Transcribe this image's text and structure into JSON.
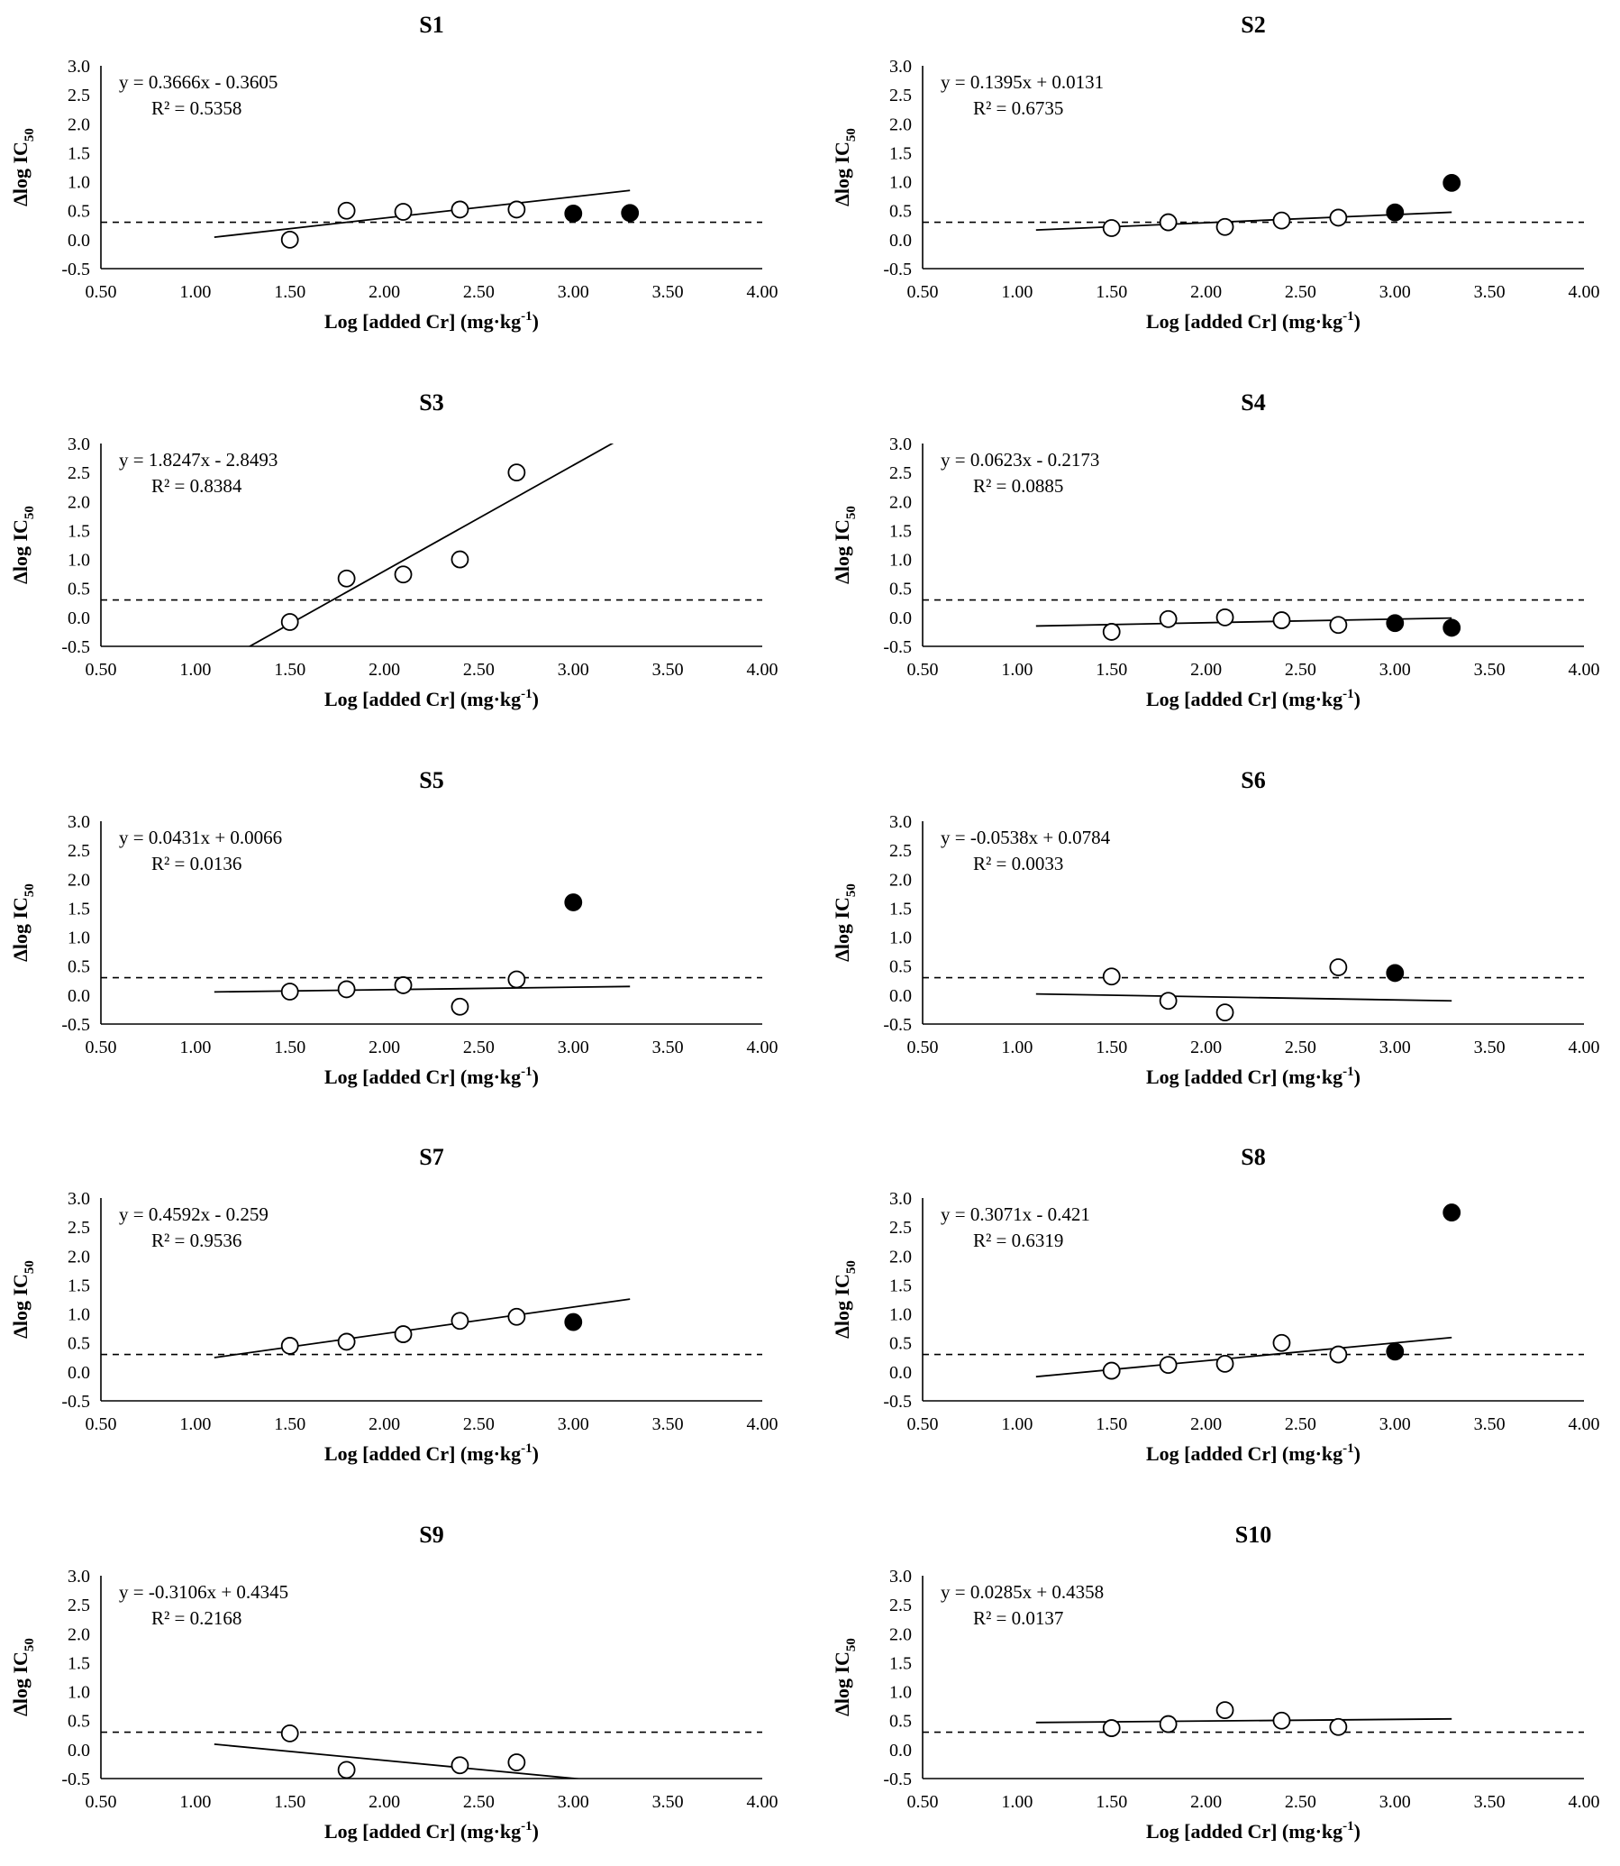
{
  "figure": {
    "xlabel": "Log [added Cr]  (mg·kg",
    "xlabel_sup": "-1",
    "xlabel_end": ")",
    "ylabel_main": "Δlog IC",
    "ylabel_sub": "50",
    "threshold_line": 0.3,
    "colors": {
      "line": "#000000",
      "open_marker_fill": "#ffffff",
      "filled_marker": "#000000"
    }
  },
  "chart_data": [
    {
      "type": "scatter",
      "title": "S1",
      "xlim": [
        0.5,
        4.0
      ],
      "ylim": [
        -0.5,
        3.0
      ],
      "xticks": [
        "0.50",
        "1.00",
        "1.50",
        "2.00",
        "2.50",
        "3.00",
        "3.50",
        "4.00"
      ],
      "yticks": [
        "-0.5",
        "0.0",
        "0.5",
        "1.0",
        "1.5",
        "2.0",
        "2.5",
        "3.0"
      ],
      "series": [
        {
          "name": "open",
          "marker": "open",
          "x": [
            1.5,
            1.8,
            2.1,
            2.4,
            2.7
          ],
          "y": [
            0.0,
            0.5,
            0.48,
            0.52,
            0.52
          ]
        },
        {
          "name": "filled",
          "marker": "filled",
          "x": [
            3.0,
            3.3
          ],
          "y": [
            0.45,
            0.46
          ]
        }
      ],
      "trendline": {
        "slope": 0.3666,
        "intercept": -0.3605,
        "x_range": [
          1.1,
          3.3
        ]
      },
      "equation": "y = 0.3666x - 0.3605",
      "r2": "R² = 0.5358"
    },
    {
      "type": "scatter",
      "title": "S2",
      "xlim": [
        0.5,
        4.0
      ],
      "ylim": [
        -0.5,
        3.0
      ],
      "xticks": [
        "0.50",
        "1.00",
        "1.50",
        "2.00",
        "2.50",
        "3.00",
        "3.50",
        "4.00"
      ],
      "yticks": [
        "-0.5",
        "0.0",
        "0.5",
        "1.0",
        "1.5",
        "2.0",
        "2.5",
        "3.0"
      ],
      "series": [
        {
          "name": "open",
          "marker": "open",
          "x": [
            1.5,
            1.8,
            2.1,
            2.4,
            2.7
          ],
          "y": [
            0.2,
            0.3,
            0.22,
            0.33,
            0.38
          ]
        },
        {
          "name": "filled",
          "marker": "filled",
          "x": [
            3.0,
            3.3
          ],
          "y": [
            0.47,
            0.98
          ]
        }
      ],
      "trendline": {
        "slope": 0.1395,
        "intercept": 0.0131,
        "x_range": [
          1.1,
          3.3
        ]
      },
      "equation": "y = 0.1395x + 0.0131",
      "r2": "R² = 0.6735"
    },
    {
      "type": "scatter",
      "title": "S3",
      "xlim": [
        0.5,
        4.0
      ],
      "ylim": [
        -0.5,
        3.0
      ],
      "xticks": [
        "0.50",
        "1.00",
        "1.50",
        "2.00",
        "2.50",
        "3.00",
        "3.50",
        "4.00"
      ],
      "yticks": [
        "-0.5",
        "0.0",
        "0.5",
        "1.0",
        "1.5",
        "2.0",
        "2.5",
        "3.0"
      ],
      "series": [
        {
          "name": "open",
          "marker": "open",
          "x": [
            1.5,
            1.8,
            2.1,
            2.4,
            2.7
          ],
          "y": [
            -0.08,
            0.67,
            0.74,
            1.0,
            2.5
          ]
        }
      ],
      "trendline": {
        "slope": 1.8247,
        "intercept": -2.8493,
        "x_range": [
          1.1,
          3.3
        ]
      },
      "equation": "y = 1.8247x - 2.8493",
      "r2": "R² = 0.8384"
    },
    {
      "type": "scatter",
      "title": "S4",
      "xlim": [
        0.5,
        4.0
      ],
      "ylim": [
        -0.5,
        3.0
      ],
      "xticks": [
        "0.50",
        "1.00",
        "1.50",
        "2.00",
        "2.50",
        "3.00",
        "3.50",
        "4.00"
      ],
      "yticks": [
        "-0.5",
        "0.0",
        "0.5",
        "1.0",
        "1.5",
        "2.0",
        "2.5",
        "3.0"
      ],
      "series": [
        {
          "name": "open",
          "marker": "open",
          "x": [
            1.5,
            1.8,
            2.1,
            2.4,
            2.7
          ],
          "y": [
            -0.25,
            -0.03,
            0.0,
            -0.05,
            -0.13
          ]
        },
        {
          "name": "filled",
          "marker": "filled",
          "x": [
            3.0,
            3.3
          ],
          "y": [
            -0.1,
            -0.18
          ]
        }
      ],
      "trendline": {
        "slope": 0.0623,
        "intercept": -0.2173,
        "x_range": [
          1.1,
          3.3
        ]
      },
      "equation": "y = 0.0623x - 0.2173",
      "r2": "R² = 0.0885"
    },
    {
      "type": "scatter",
      "title": "S5",
      "xlim": [
        0.5,
        4.0
      ],
      "ylim": [
        -0.5,
        3.0
      ],
      "xticks": [
        "0.50",
        "1.00",
        "1.50",
        "2.00",
        "2.50",
        "3.00",
        "3.50",
        "4.00"
      ],
      "yticks": [
        "-0.5",
        "0.0",
        "0.5",
        "1.0",
        "1.5",
        "2.0",
        "2.5",
        "3.0"
      ],
      "series": [
        {
          "name": "open",
          "marker": "open",
          "x": [
            1.5,
            1.8,
            2.1,
            2.4,
            2.7
          ],
          "y": [
            0.06,
            0.1,
            0.17,
            -0.2,
            0.27
          ]
        },
        {
          "name": "filled",
          "marker": "filled",
          "x": [
            3.0
          ],
          "y": [
            1.6
          ]
        }
      ],
      "trendline": {
        "slope": 0.0431,
        "intercept": 0.0066,
        "x_range": [
          1.1,
          3.3
        ]
      },
      "equation": "y = 0.0431x + 0.0066",
      "r2": "R² = 0.0136"
    },
    {
      "type": "scatter",
      "title": "S6",
      "xlim": [
        0.5,
        4.0
      ],
      "ylim": [
        -0.5,
        3.0
      ],
      "xticks": [
        "0.50",
        "1.00",
        "1.50",
        "2.00",
        "2.50",
        "3.00",
        "3.50",
        "4.00"
      ],
      "yticks": [
        "-0.5",
        "0.0",
        "0.5",
        "1.0",
        "1.5",
        "2.0",
        "2.5",
        "3.0"
      ],
      "series": [
        {
          "name": "open",
          "marker": "open",
          "x": [
            1.5,
            1.8,
            2.1,
            2.7
          ],
          "y": [
            0.32,
            -0.1,
            -0.3,
            0.48
          ]
        },
        {
          "name": "filled",
          "marker": "filled",
          "x": [
            3.0
          ],
          "y": [
            0.38
          ]
        }
      ],
      "trendline": {
        "slope": -0.0538,
        "intercept": 0.0784,
        "x_range": [
          1.1,
          3.3
        ]
      },
      "equation": "y = -0.0538x + 0.0784",
      "r2": "R² = 0.0033"
    },
    {
      "type": "scatter",
      "title": "S7",
      "xlim": [
        0.5,
        4.0
      ],
      "ylim": [
        -0.5,
        3.0
      ],
      "xticks": [
        "0.50",
        "1.00",
        "1.50",
        "2.00",
        "2.50",
        "3.00",
        "3.50",
        "4.00"
      ],
      "yticks": [
        "-0.5",
        "0.0",
        "0.5",
        "1.0",
        "1.5",
        "2.0",
        "2.5",
        "3.0"
      ],
      "series": [
        {
          "name": "open",
          "marker": "open",
          "x": [
            1.5,
            1.8,
            2.1,
            2.4,
            2.7
          ],
          "y": [
            0.45,
            0.52,
            0.65,
            0.88,
            0.95
          ]
        },
        {
          "name": "filled",
          "marker": "filled",
          "x": [
            3.0
          ],
          "y": [
            0.86
          ]
        }
      ],
      "trendline": {
        "slope": 0.4592,
        "intercept": -0.259,
        "x_range": [
          1.1,
          3.3
        ]
      },
      "equation": "y = 0.4592x - 0.259",
      "r2": "R² = 0.9536"
    },
    {
      "type": "scatter",
      "title": "S8",
      "xlim": [
        0.5,
        4.0
      ],
      "ylim": [
        -0.5,
        3.0
      ],
      "xticks": [
        "0.50",
        "1.00",
        "1.50",
        "2.00",
        "2.50",
        "3.00",
        "3.50",
        "4.00"
      ],
      "yticks": [
        "-0.5",
        "0.0",
        "0.5",
        "1.0",
        "1.5",
        "2.0",
        "2.5",
        "3.0"
      ],
      "series": [
        {
          "name": "open",
          "marker": "open",
          "x": [
            1.5,
            1.8,
            2.1,
            2.4,
            2.7
          ],
          "y": [
            0.02,
            0.12,
            0.14,
            0.5,
            0.3
          ]
        },
        {
          "name": "filled",
          "marker": "filled",
          "x": [
            3.0,
            3.3
          ],
          "y": [
            0.35,
            2.75
          ]
        }
      ],
      "trendline": {
        "slope": 0.3071,
        "intercept": -0.421,
        "x_range": [
          1.1,
          3.3
        ]
      },
      "equation": "y = 0.3071x - 0.421",
      "r2": "R² = 0.6319"
    },
    {
      "type": "scatter",
      "title": "S9",
      "xlim": [
        0.5,
        4.0
      ],
      "ylim": [
        -0.5,
        3.0
      ],
      "xticks": [
        "0.50",
        "1.00",
        "1.50",
        "2.00",
        "2.50",
        "3.00",
        "3.50",
        "4.00"
      ],
      "yticks": [
        "-0.5",
        "0.0",
        "0.5",
        "1.0",
        "1.5",
        "2.0",
        "2.5",
        "3.0"
      ],
      "series": [
        {
          "name": "open",
          "marker": "open",
          "x": [
            1.5,
            1.8,
            2.4,
            2.7
          ],
          "y": [
            0.28,
            -0.35,
            -0.27,
            -0.22
          ]
        }
      ],
      "trendline": {
        "slope": -0.3106,
        "intercept": 0.4345,
        "x_range": [
          1.1,
          3.3
        ]
      },
      "equation": "y = -0.3106x + 0.4345",
      "r2": "R² = 0.2168"
    },
    {
      "type": "scatter",
      "title": "S10",
      "xlim": [
        0.5,
        4.0
      ],
      "ylim": [
        -0.5,
        3.0
      ],
      "xticks": [
        "0.50",
        "1.00",
        "1.50",
        "2.00",
        "2.50",
        "3.00",
        "3.50",
        "4.00"
      ],
      "yticks": [
        "-0.5",
        "0.0",
        "0.5",
        "1.0",
        "1.5",
        "2.0",
        "2.5",
        "3.0"
      ],
      "series": [
        {
          "name": "open",
          "marker": "open",
          "x": [
            1.5,
            1.8,
            2.1,
            2.4,
            2.7
          ],
          "y": [
            0.37,
            0.44,
            0.68,
            0.5,
            0.39
          ]
        }
      ],
      "trendline": {
        "slope": 0.0285,
        "intercept": 0.4358,
        "x_range": [
          1.1,
          3.3
        ]
      },
      "equation": "y = 0.0285x + 0.4358",
      "r2": "R² = 0.0137"
    }
  ]
}
